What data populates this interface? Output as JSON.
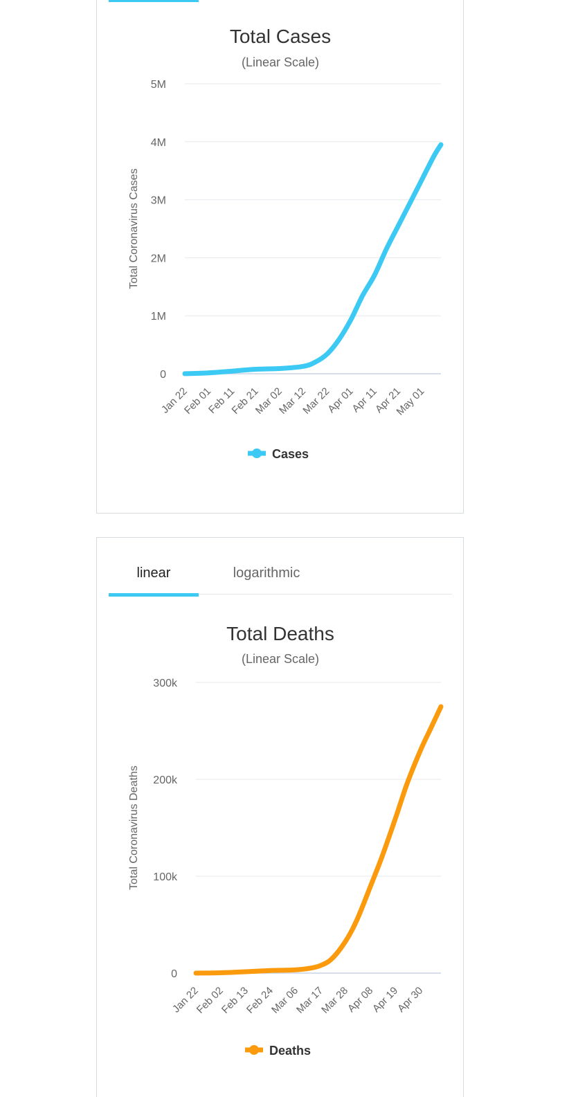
{
  "cases_card": {
    "chart_data": {
      "type": "line",
      "title": "Total Cases",
      "subtitle": "(Linear Scale)",
      "ylabel": "Total Coronavirus Cases",
      "ylim": [
        0,
        5000000
      ],
      "y_ticks": [
        "0",
        "1M",
        "2M",
        "3M",
        "4M",
        "5M"
      ],
      "x_ticks": [
        "Jan 22",
        "Feb 01",
        "Feb 11",
        "Feb 21",
        "Mar 02",
        "Mar 12",
        "Mar 22",
        "Apr 01",
        "Apr 11",
        "Apr 21",
        "May 01"
      ],
      "series": [
        {
          "name": "Cases",
          "color": "#3ccaf4",
          "x": [
            "Jan 22",
            "Feb 01",
            "Feb 11",
            "Feb 21",
            "Mar 02",
            "Mar 12",
            "Mar 17",
            "Mar 22",
            "Mar 27",
            "Apr 01",
            "Apr 06",
            "Apr 11",
            "Apr 16",
            "Apr 21",
            "Apr 26",
            "May 01",
            "May 06",
            "May 09"
          ],
          "values": [
            600,
            15000,
            45000,
            78000,
            90000,
            128000,
            200000,
            340000,
            590000,
            930000,
            1350000,
            1700000,
            2150000,
            2550000,
            2950000,
            3350000,
            3750000,
            3950000
          ]
        }
      ]
    }
  },
  "deaths_card": {
    "tabs": [
      {
        "label": "linear",
        "active": true
      },
      {
        "label": "logarithmic",
        "active": false
      }
    ],
    "chart_data": {
      "type": "line",
      "title": "Total Deaths",
      "subtitle": "(Linear Scale)",
      "ylabel": "Total Coronavirus Deaths",
      "ylim": [
        0,
        300000
      ],
      "y_ticks": [
        "0",
        "100k",
        "200k",
        "300k"
      ],
      "x_ticks": [
        "Jan 22",
        "Feb 02",
        "Feb 13",
        "Feb 24",
        "Mar 06",
        "Mar 17",
        "Mar 28",
        "Apr 08",
        "Apr 19",
        "Apr 30"
      ],
      "series": [
        {
          "name": "Deaths",
          "color": "#fb9a0c",
          "x": [
            "Jan 22",
            "Feb 02",
            "Feb 13",
            "Feb 24",
            "Mar 06",
            "Mar 12",
            "Mar 17",
            "Mar 22",
            "Mar 28",
            "Apr 02",
            "Apr 08",
            "Apr 13",
            "Apr 19",
            "Apr 24",
            "Apr 30",
            "May 05",
            "May 09"
          ],
          "values": [
            17,
            360,
            1400,
            2700,
            3400,
            4900,
            7900,
            15000,
            33000,
            55000,
            90000,
            120000,
            160000,
            195000,
            230000,
            255000,
            275000
          ]
        }
      ]
    }
  }
}
